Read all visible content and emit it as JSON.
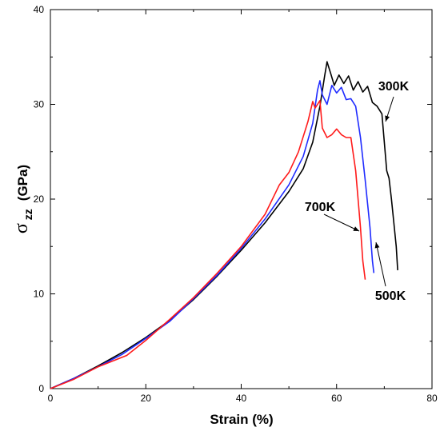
{
  "chart_data": {
    "type": "line",
    "xlabel": "Strain (%)",
    "ylabel": {
      "symbol": "σ",
      "subscript": "zz",
      "unit": "(GPa)"
    },
    "xlim": [
      0,
      80
    ],
    "ylim": [
      0,
      40
    ],
    "xticks": [
      "0",
      "20",
      "40",
      "60",
      "80"
    ],
    "yticks": [
      "0",
      "10",
      "20",
      "30",
      "40"
    ],
    "grid": false,
    "series": [
      {
        "name": "300K",
        "color": "#000000",
        "points": [
          [
            0,
            0
          ],
          [
            5,
            1.1
          ],
          [
            10,
            2.4
          ],
          [
            15,
            3.8
          ],
          [
            20,
            5.4
          ],
          [
            25,
            7.2
          ],
          [
            30,
            9.4
          ],
          [
            35,
            11.9
          ],
          [
            40,
            14.6
          ],
          [
            45,
            17.5
          ],
          [
            50,
            20.8
          ],
          [
            53,
            23.2
          ],
          [
            55,
            26.0
          ],
          [
            56.5,
            29.8
          ],
          [
            57.5,
            33.0
          ],
          [
            58,
            34.5
          ],
          [
            58.8,
            33.2
          ],
          [
            59.5,
            32.0
          ],
          [
            60.5,
            33.1
          ],
          [
            61.5,
            32.2
          ],
          [
            62.5,
            33.0
          ],
          [
            63.5,
            31.5
          ],
          [
            64.5,
            32.4
          ],
          [
            65.5,
            31.3
          ],
          [
            66.5,
            31.9
          ],
          [
            67.5,
            30.2
          ],
          [
            68.5,
            29.8
          ],
          [
            69.5,
            29.0
          ],
          [
            70,
            26.0
          ],
          [
            70.5,
            23.0
          ],
          [
            71,
            22.2
          ],
          [
            71.5,
            20.0
          ],
          [
            72,
            17.5
          ],
          [
            72.5,
            15.0
          ],
          [
            72.8,
            12.5
          ]
        ]
      },
      {
        "name": "500K",
        "color": "#1f2bff",
        "points": [
          [
            0,
            0
          ],
          [
            5,
            1.1
          ],
          [
            10,
            2.3
          ],
          [
            15,
            3.6
          ],
          [
            20,
            5.3
          ],
          [
            25,
            7.1
          ],
          [
            30,
            9.5
          ],
          [
            35,
            12.0
          ],
          [
            40,
            14.8
          ],
          [
            45,
            17.9
          ],
          [
            50,
            21.5
          ],
          [
            53,
            24.5
          ],
          [
            55,
            28.0
          ],
          [
            56,
            31.5
          ],
          [
            56.5,
            32.5
          ],
          [
            57,
            31.0
          ],
          [
            58,
            30.0
          ],
          [
            59,
            32.0
          ],
          [
            60,
            31.2
          ],
          [
            61,
            31.8
          ],
          [
            62,
            30.5
          ],
          [
            63,
            30.6
          ],
          [
            64,
            29.8
          ],
          [
            65,
            26.5
          ],
          [
            66,
            22.0
          ],
          [
            67,
            17.0
          ],
          [
            67.5,
            13.5
          ],
          [
            67.8,
            12.2
          ]
        ]
      },
      {
        "name": "700K",
        "color": "#ff1a1a",
        "points": [
          [
            0,
            0
          ],
          [
            5,
            1.0
          ],
          [
            10,
            2.3
          ],
          [
            15,
            3.3
          ],
          [
            16,
            3.5
          ],
          [
            20,
            5.1
          ],
          [
            25,
            7.3
          ],
          [
            30,
            9.6
          ],
          [
            35,
            12.2
          ],
          [
            40,
            15.0
          ],
          [
            45,
            18.4
          ],
          [
            48,
            21.5
          ],
          [
            50,
            22.8
          ],
          [
            52,
            25.0
          ],
          [
            54,
            28.2
          ],
          [
            55,
            30.3
          ],
          [
            55.5,
            29.6
          ],
          [
            56,
            30.0
          ],
          [
            56.5,
            30.4
          ],
          [
            57,
            27.5
          ],
          [
            58,
            26.5
          ],
          [
            59,
            26.8
          ],
          [
            60,
            27.4
          ],
          [
            61,
            26.8
          ],
          [
            62,
            26.5
          ],
          [
            63,
            26.5
          ],
          [
            64,
            23.0
          ],
          [
            65,
            17.0
          ],
          [
            65.5,
            13.5
          ],
          [
            66,
            11.5
          ]
        ]
      }
    ],
    "annotations": [
      {
        "text": "300K"
      },
      {
        "text": "500K"
      },
      {
        "text": "700K"
      }
    ]
  }
}
